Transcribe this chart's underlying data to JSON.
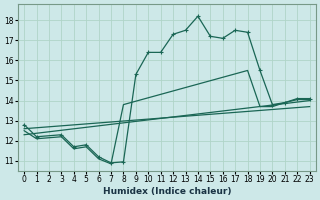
{
  "xlabel": "Humidex (Indice chaleur)",
  "ylabel": "",
  "xlim": [
    -0.5,
    23.5
  ],
  "ylim": [
    10.5,
    18.8
  ],
  "yticks": [
    11,
    12,
    13,
    14,
    15,
    16,
    17,
    18
  ],
  "xticks": [
    0,
    1,
    2,
    3,
    4,
    5,
    6,
    7,
    8,
    9,
    10,
    11,
    12,
    13,
    14,
    15,
    16,
    17,
    18,
    19,
    20,
    21,
    22,
    23
  ],
  "bg_color": "#cde8e8",
  "grid_color": "#b0d4c8",
  "line_color": "#1a6655",
  "line1_x": [
    0,
    1,
    3,
    4,
    5,
    6,
    7,
    8,
    9,
    10,
    11,
    12,
    13,
    14,
    15,
    16,
    17,
    18,
    19,
    20,
    21,
    22,
    23
  ],
  "line1_y": [
    12.8,
    12.2,
    12.3,
    11.7,
    11.8,
    11.2,
    10.9,
    10.95,
    15.3,
    16.4,
    16.4,
    17.3,
    17.5,
    18.2,
    17.2,
    17.1,
    17.5,
    17.4,
    15.5,
    13.8,
    13.9,
    14.1,
    14.1
  ],
  "line2_x": [
    0,
    1,
    3,
    4,
    5,
    6,
    7,
    8,
    18,
    19,
    20,
    21,
    22,
    23
  ],
  "line2_y": [
    12.5,
    12.1,
    12.2,
    11.6,
    11.7,
    11.1,
    10.85,
    13.8,
    15.5,
    13.7,
    13.7,
    13.9,
    14.05,
    14.05
  ],
  "line3_x": [
    0,
    23
  ],
  "line3_y": [
    12.3,
    14.0
  ],
  "line4_x": [
    0,
    23
  ],
  "line4_y": [
    12.6,
    13.7
  ]
}
